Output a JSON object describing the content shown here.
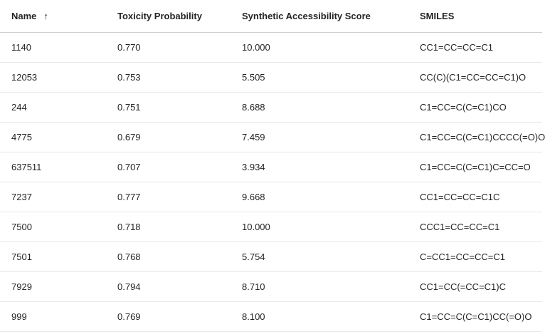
{
  "table": {
    "columns": [
      {
        "label": "Name",
        "sort_icon": "arrow-up-icon",
        "sort_glyph": "↑"
      },
      {
        "label": "Toxicity Probability"
      },
      {
        "label": "Synthetic Accessibility Score"
      },
      {
        "label": "SMILES"
      }
    ],
    "rows": [
      {
        "name": "1140",
        "toxicity": "0.770",
        "sa_score": "10.000",
        "smiles": "CC1=CC=CC=C1"
      },
      {
        "name": "12053",
        "toxicity": "0.753",
        "sa_score": "5.505",
        "smiles": "CC(C)(C1=CC=CC=C1)O"
      },
      {
        "name": "244",
        "toxicity": "0.751",
        "sa_score": "8.688",
        "smiles": "C1=CC=C(C=C1)CO"
      },
      {
        "name": "4775",
        "toxicity": "0.679",
        "sa_score": "7.459",
        "smiles": "C1=CC=C(C=C1)CCCC(=O)O"
      },
      {
        "name": "637511",
        "toxicity": "0.707",
        "sa_score": "3.934",
        "smiles": "C1=CC=C(C=C1)C=CC=O"
      },
      {
        "name": "7237",
        "toxicity": "0.777",
        "sa_score": "9.668",
        "smiles": "CC1=CC=CC=C1C"
      },
      {
        "name": "7500",
        "toxicity": "0.718",
        "sa_score": "10.000",
        "smiles": "CCC1=CC=CC=C1"
      },
      {
        "name": "7501",
        "toxicity": "0.768",
        "sa_score": "5.754",
        "smiles": "C=CC1=CC=CC=C1"
      },
      {
        "name": "7929",
        "toxicity": "0.794",
        "sa_score": "8.710",
        "smiles": "CC1=CC(=CC=C1)C"
      },
      {
        "name": "999",
        "toxicity": "0.769",
        "sa_score": "8.100",
        "smiles": "C1=CC=C(C=C1)CC(=O)O"
      }
    ]
  }
}
